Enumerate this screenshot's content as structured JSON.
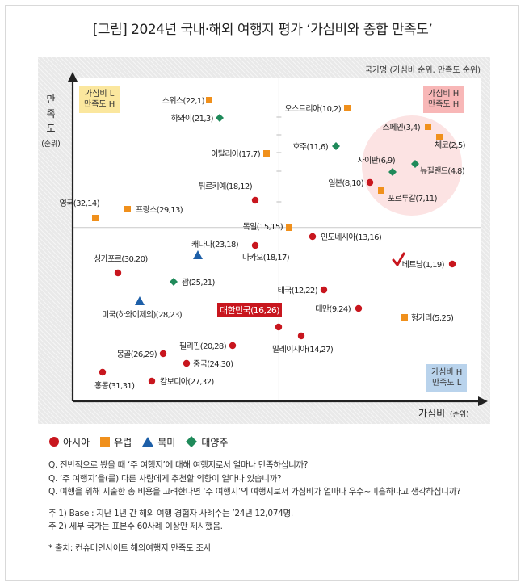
{
  "title": "[그림] 2024년 국내·해외 여행지 평가 ‘가심비와 종합 만족도’",
  "corner_labels": {
    "top_left": [
      "가심비 L",
      "만족도 H"
    ],
    "top_right": [
      "가심비 H",
      "만족도 H"
    ],
    "bottom_right": [
      "가심비 H",
      "만족도 L"
    ]
  },
  "legend_note": "국가명 (가심비 순위, 만족도 순위)",
  "axes": {
    "x_label": "가심비",
    "x_unit": "(순위)",
    "y_label": [
      "만",
      "족",
      "도"
    ],
    "y_unit": "(순위)"
  },
  "legend": [
    {
      "name": "아시아",
      "shape": "circle",
      "color": "#c8161e"
    },
    {
      "name": "유럽",
      "shape": "square",
      "color": "#f0901c"
    },
    {
      "name": "북미",
      "shape": "triangle",
      "color": "#1d5fa8"
    },
    {
      "name": "대양주",
      "shape": "diamond",
      "color": "#1f8a5a"
    }
  ],
  "chart_data": {
    "type": "scatter",
    "xlabel": "가심비 (순위)",
    "ylabel": "만족도 (순위)",
    "x_reversed": true,
    "y_reversed": true,
    "quadrant_divider": {
      "x": 15.5,
      "y": 15.5
    },
    "points": [
      {
        "label": "스위스(22,1)",
        "region": "유럽",
        "x": 22,
        "y": 1
      },
      {
        "label": "하와이(21,3)",
        "region": "대양주",
        "x": 21,
        "y": 3
      },
      {
        "label": "이탈리아(17,7)",
        "region": "유럽",
        "x": 17,
        "y": 7
      },
      {
        "label": "튀르키예(18,12)",
        "region": "아시아",
        "x": 18,
        "y": 12
      },
      {
        "label": "영국(32,14)",
        "region": "유럽",
        "x": 32,
        "y": 14
      },
      {
        "label": "프랑스(29,13)",
        "region": "유럽",
        "x": 29,
        "y": 13
      },
      {
        "label": "독일(15,15)",
        "region": "유럽",
        "x": 15,
        "y": 15
      },
      {
        "label": "오스트리아(10,2)",
        "region": "유럽",
        "x": 10,
        "y": 2
      },
      {
        "label": "스페인(3,4)",
        "region": "유럽",
        "x": 3,
        "y": 4
      },
      {
        "label": "체코(2,5)",
        "region": "유럽",
        "x": 2,
        "y": 5
      },
      {
        "label": "호주(11,6)",
        "region": "대양주",
        "x": 11,
        "y": 6
      },
      {
        "label": "사이판(6,9)",
        "region": "대양주",
        "x": 6,
        "y": 9
      },
      {
        "label": "뉴질랜드(4,8)",
        "region": "대양주",
        "x": 4,
        "y": 8
      },
      {
        "label": "일본(8,10)",
        "region": "아시아",
        "x": 8,
        "y": 10
      },
      {
        "label": "포르투갈(7,11)",
        "region": "유럽",
        "x": 7,
        "y": 11
      },
      {
        "label": "인도네시아(13,16)",
        "region": "아시아",
        "x": 13,
        "y": 16
      },
      {
        "label": "캐나다(23,18)",
        "region": "북미",
        "x": 23,
        "y": 18
      },
      {
        "label": "마카오(18,17)",
        "region": "아시아",
        "x": 18,
        "y": 17
      },
      {
        "label": "싱가포르(30,20)",
        "region": "아시아",
        "x": 30,
        "y": 20
      },
      {
        "label": "베트남(1,19)",
        "region": "아시아",
        "x": 1,
        "y": 19
      },
      {
        "label": "괌(25,21)",
        "region": "대양주",
        "x": 25,
        "y": 21
      },
      {
        "label": "태국(12,22)",
        "region": "아시아",
        "x": 12,
        "y": 22
      },
      {
        "label": "미국(하와이제외)(28,23)",
        "region": "북미",
        "x": 28,
        "y": 23
      },
      {
        "label": "대만(9,24)",
        "region": "아시아",
        "x": 9,
        "y": 24
      },
      {
        "label": "헝가리(5,25)",
        "region": "유럽",
        "x": 5,
        "y": 25
      },
      {
        "label": "대한민국(16,26)",
        "region": "아시아",
        "x": 16,
        "y": 26,
        "highlight": true
      },
      {
        "label": "필리핀(20,28)",
        "region": "아시아",
        "x": 20,
        "y": 28
      },
      {
        "label": "말레이시아(14,27)",
        "region": "아시아",
        "x": 14,
        "y": 27
      },
      {
        "label": "몽골(26,29)",
        "region": "아시아",
        "x": 26,
        "y": 29
      },
      {
        "label": "중국(24,30)",
        "region": "아시아",
        "x": 24,
        "y": 30
      },
      {
        "label": "홍콩(31,31)",
        "region": "아시아",
        "x": 31,
        "y": 31
      },
      {
        "label": "캄보디아(27,32)",
        "region": "아시아",
        "x": 27,
        "y": 32
      }
    ]
  },
  "notes": {
    "questions": [
      "Q. 전반적으로 봤을 때 ‘주 여행지’에 대해 여행지로서 얼마나 만족하십니까?",
      "Q. ‘주 여행지’을(를) 다른 사람에게 추천할 의향이 얼마나 있습니까?",
      "Q. 여행을 위해 지출한 총 비용을 고려한다면 ‘주 여행지’의 여행지로서 가심비가 얼마나 우수~미흡하다고 생각하십니까?"
    ],
    "footnotes": [
      "주 1) Base : 지난 1년 간 해외 여행 경험자 사례수는 ’24년 12,074명.",
      "주 2) 세부 국가는 표본수 60사례 이상만 제시했음."
    ],
    "source": "* 출처: 컨슈머인사이트 해외여행지 만족도 조사"
  }
}
